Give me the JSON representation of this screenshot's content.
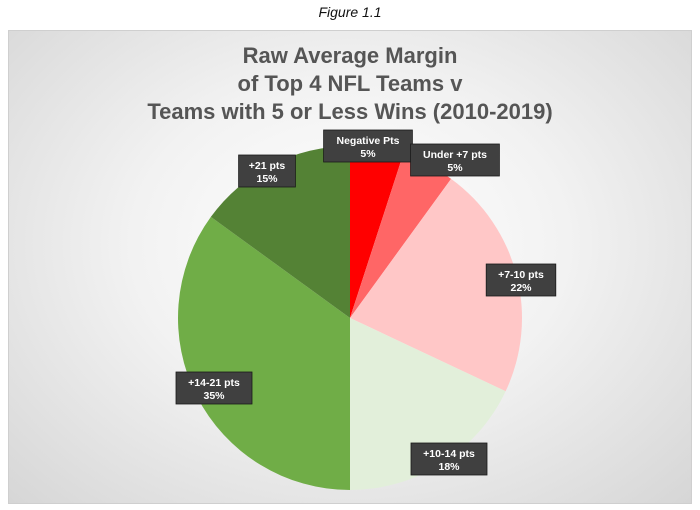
{
  "figure_caption": "Figure 1.1",
  "chart_data": {
    "type": "pie",
    "title": "Raw Average Margin\nof Top 4 NFL Teams v\nTeams with 5 or Less Wins (2010-2019)",
    "slices": [
      {
        "label": "Negative Pts",
        "value": 5,
        "display": "5%",
        "color": "#ff0000"
      },
      {
        "label": "Under +7 pts",
        "value": 5,
        "display": "5%",
        "color": "#ff6666"
      },
      {
        "label": "+7-10 pts",
        "value": 22,
        "display": "22%",
        "color": "#ffc7c7"
      },
      {
        "label": "+10-14 pts",
        "value": 18,
        "display": "18%",
        "color": "#e2efda"
      },
      {
        "label": "+14-21 pts",
        "value": 35,
        "display": "35%",
        "color": "#70ad47"
      },
      {
        "label": "+21 pts",
        "value": 15,
        "display": "15%",
        "color": "#548235"
      }
    ],
    "start_angle_deg": 0,
    "direction": "clockwise",
    "legend": "none",
    "data_labels": "callout boxes"
  }
}
